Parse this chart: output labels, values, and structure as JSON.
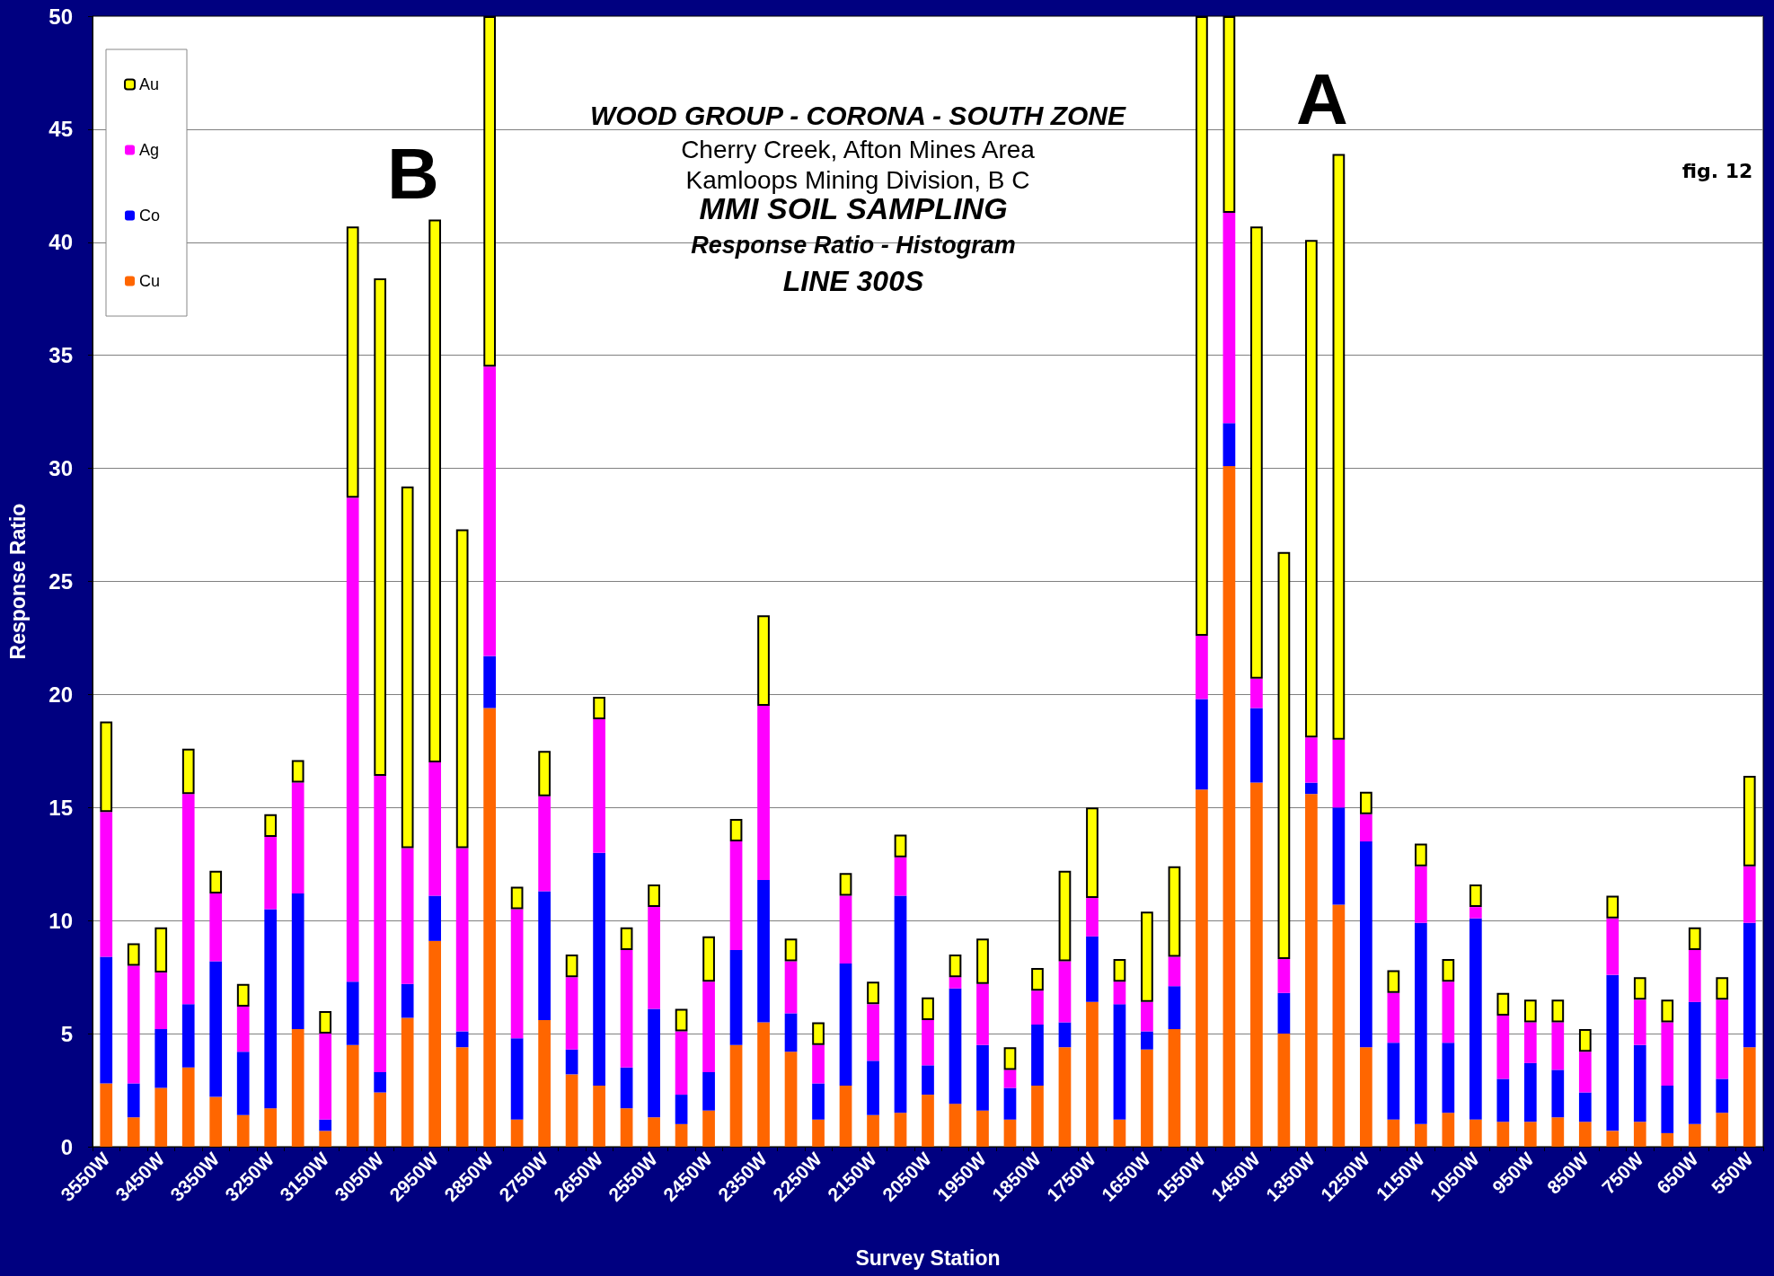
{
  "chart_data": {
    "type": "bar",
    "title": "WOOD GROUP - CORONA - SOUTH ZONE",
    "subtitle": "Cherry Creek, Afton Mines Area\nKamloops Mining Division, B C",
    "xlabel": "Survey Station",
    "ylabel": "Response Ratio",
    "annotations": [
      "MMI SOIL SAMPLING",
      "Response Ratio - Histogram",
      "LINE 300S",
      "A",
      "B",
      "fig. 12"
    ],
    "categories": [
      "3550W",
      null,
      "3450W",
      null,
      "3350W",
      null,
      "3250W",
      null,
      "3150W",
      null,
      "3050W",
      null,
      "2950W",
      null,
      "2850W",
      null,
      "2750W",
      null,
      "2650W",
      null,
      "2550W",
      null,
      "2450W",
      null,
      "2350W",
      null,
      "2250W",
      null,
      "2150W",
      null,
      "2050W",
      null,
      "1950W",
      null,
      "1850W",
      null,
      "1750W",
      null,
      "1650W",
      null,
      "1550W",
      null,
      "1450W",
      null,
      "1350W",
      null,
      "1250W",
      null,
      "1150W",
      null,
      "1050W",
      null,
      "950W",
      null,
      "850W",
      null,
      "750W",
      null,
      "650W",
      null,
      "550W"
    ],
    "stacked": true,
    "ylim": [
      0,
      50
    ],
    "yticks": [
      0,
      5,
      10,
      15,
      20,
      25,
      30,
      35,
      40,
      45,
      50
    ],
    "grid": "y",
    "legend": "top left",
    "series": [
      {
        "name": "Cu",
        "color": "#ff6600",
        "values": [
          2.8,
          1.3,
          2.6,
          3.5,
          2.2,
          1.4,
          1.7,
          5.2,
          0.7,
          4.5,
          2.4,
          5.7,
          9.1,
          4.4,
          19.4,
          1.2,
          5.6,
          3.2,
          2.7,
          1.7,
          1.3,
          1.0,
          1.6,
          4.5,
          5.5,
          4.2,
          1.2,
          2.7,
          1.4,
          1.5,
          2.3,
          1.9,
          1.6,
          1.2,
          2.7,
          4.4,
          6.4,
          1.2,
          4.3,
          5.2,
          15.8,
          30.1,
          16.1,
          5.0,
          15.6,
          10.7,
          4.4,
          1.2,
          1.0,
          1.5,
          1.2,
          1.1,
          1.1,
          1.3,
          1.1,
          0.7,
          1.1,
          0.6,
          1.0,
          1.5,
          4.4
        ]
      },
      {
        "name": "Co",
        "color": "#0000ff",
        "values": [
          5.6,
          1.5,
          2.6,
          2.8,
          6.0,
          2.8,
          8.8,
          6.0,
          0.5,
          2.8,
          0.9,
          1.5,
          2.0,
          0.7,
          2.3,
          3.6,
          5.7,
          1.1,
          10.3,
          1.8,
          4.8,
          1.3,
          1.7,
          4.2,
          6.3,
          1.7,
          1.6,
          5.4,
          2.4,
          9.6,
          1.3,
          5.1,
          2.9,
          1.4,
          2.7,
          1.1,
          2.9,
          5.1,
          0.8,
          1.9,
          4.0,
          1.9,
          3.3,
          1.8,
          0.5,
          4.3,
          9.1,
          3.4,
          8.9,
          3.1,
          8.9,
          1.9,
          2.6,
          2.1,
          1.3,
          6.9,
          3.4,
          2.1,
          5.4,
          1.5,
          5.5
        ]
      },
      {
        "name": "Ag",
        "color": "#ff00ff",
        "values": [
          6.4,
          5.2,
          2.5,
          9.3,
          3.0,
          2.0,
          3.2,
          4.9,
          3.8,
          21.4,
          13.1,
          6.0,
          5.9,
          8.1,
          12.8,
          5.7,
          4.2,
          3.2,
          5.9,
          5.2,
          4.5,
          2.8,
          4.0,
          4.8,
          7.7,
          2.3,
          1.7,
          3.0,
          2.5,
          1.7,
          2.0,
          0.5,
          2.7,
          0.8,
          1.5,
          2.7,
          1.7,
          1.0,
          1.3,
          1.3,
          2.8,
          9.3,
          1.3,
          1.5,
          2.0,
          3.0,
          1.2,
          2.2,
          2.5,
          2.7,
          0.5,
          2.8,
          1.8,
          2.1,
          1.8,
          2.5,
          2.0,
          2.8,
          2.3,
          3.5,
          2.5
        ]
      },
      {
        "name": "Au",
        "color": "#ffff00",
        "values": [
          4.0,
          1.0,
          2.0,
          2.0,
          1.0,
          1.0,
          1.0,
          1.0,
          1.0,
          12.0,
          22.0,
          16.0,
          24.0,
          14.1,
          15.5,
          1.0,
          2.0,
          1.0,
          1.0,
          1.0,
          1.0,
          1.0,
          2.0,
          1.0,
          4.0,
          1.0,
          1.0,
          1.0,
          1.0,
          1.0,
          1.0,
          1.0,
          2.0,
          1.0,
          1.0,
          4.0,
          4.0,
          1.0,
          4.0,
          4.0,
          27.4,
          8.7,
          20.0,
          18.0,
          22.0,
          25.9,
          1.0,
          1.0,
          1.0,
          1.0,
          1.0,
          1.0,
          1.0,
          1.0,
          1.0,
          1.0,
          1.0,
          1.0,
          1.0,
          1.0,
          4.0
        ]
      }
    ]
  }
}
